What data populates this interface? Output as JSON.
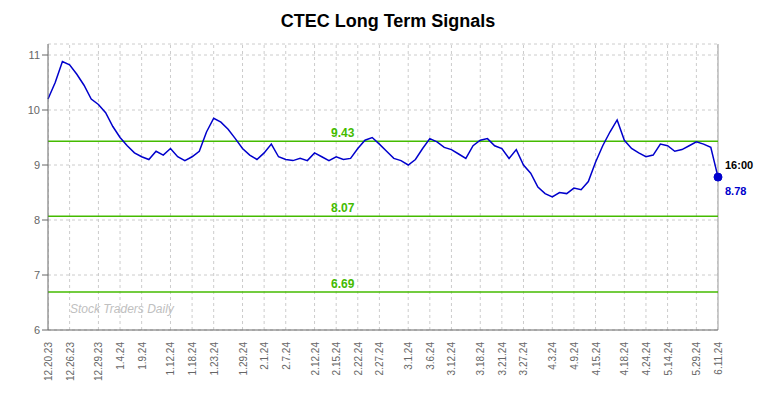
{
  "chart_data": {
    "type": "line",
    "title": "CTEC Long Term Signals",
    "categories": [
      "12.20.23",
      null,
      null,
      "12.26.23",
      null,
      null,
      null,
      "12.29.23",
      null,
      null,
      "1.4.24",
      null,
      null,
      "1.9.24",
      null,
      null,
      null,
      "1.12.24",
      null,
      null,
      "1.18.24",
      null,
      null,
      "1.23.24",
      null,
      null,
      null,
      "1.29.24",
      null,
      null,
      "2.1.24",
      null,
      null,
      "2.7.24",
      null,
      null,
      null,
      "2.12.24",
      null,
      null,
      "2.15.24",
      null,
      null,
      "2.22.24",
      null,
      null,
      "2.27.24",
      null,
      null,
      null,
      "3.1.24",
      null,
      null,
      "3.6.24",
      null,
      null,
      "3.12.24",
      null,
      null,
      null,
      "3.18.24",
      null,
      null,
      "3.21.24",
      null,
      null,
      "3.27.24",
      null,
      null,
      null,
      "4.3.24",
      null,
      null,
      "4.9.24",
      null,
      null,
      "4.15.24",
      null,
      null,
      null,
      "4.18.24",
      null,
      null,
      "4.24.24",
      null,
      null,
      "5.14.24",
      null,
      null,
      null,
      "5.29.24",
      null,
      null,
      "6.11.24"
    ],
    "values": [
      10.2,
      10.5,
      10.88,
      10.82,
      10.65,
      10.45,
      10.2,
      10.1,
      9.95,
      9.7,
      9.5,
      9.35,
      9.22,
      9.15,
      9.1,
      9.25,
      9.18,
      9.3,
      9.15,
      9.08,
      9.15,
      9.25,
      9.6,
      9.85,
      9.78,
      9.65,
      9.48,
      9.3,
      9.18,
      9.1,
      9.22,
      9.38,
      9.15,
      9.1,
      9.08,
      9.12,
      9.08,
      9.22,
      9.15,
      9.08,
      9.15,
      9.1,
      9.12,
      9.3,
      9.45,
      9.5,
      9.38,
      9.25,
      9.12,
      9.08,
      9.0,
      9.1,
      9.3,
      9.48,
      9.42,
      9.32,
      9.28,
      9.2,
      9.12,
      9.35,
      9.45,
      9.48,
      9.35,
      9.3,
      9.12,
      9.28,
      9.0,
      8.85,
      8.6,
      8.48,
      8.42,
      8.5,
      8.48,
      8.58,
      8.55,
      8.7,
      9.05,
      9.35,
      9.6,
      9.82,
      9.45,
      9.3,
      9.22,
      9.15,
      9.18,
      9.38,
      9.35,
      9.25,
      9.28,
      9.35,
      9.42,
      9.38,
      9.32,
      8.78
    ],
    "color": "#0000cc",
    "ylim": [
      6.0,
      11.2
    ],
    "yticks": [
      6,
      7,
      8,
      9,
      10,
      11
    ],
    "grid": true,
    "hlines": [
      {
        "value": 9.43,
        "label": "9.43",
        "color": "#44bb00"
      },
      {
        "value": 8.07,
        "label": "8.07",
        "color": "#44bb00"
      },
      {
        "value": 6.69,
        "label": "6.69",
        "color": "#44bb00"
      }
    ],
    "vlines": [
      {
        "x": 93,
        "color": "#999999"
      }
    ],
    "last_point": {
      "x": 93,
      "y": 8.78,
      "color": "#0000cc",
      "time_label": "16:00",
      "value_label": "8.78"
    },
    "watermark": "Stock Traders Daily"
  }
}
